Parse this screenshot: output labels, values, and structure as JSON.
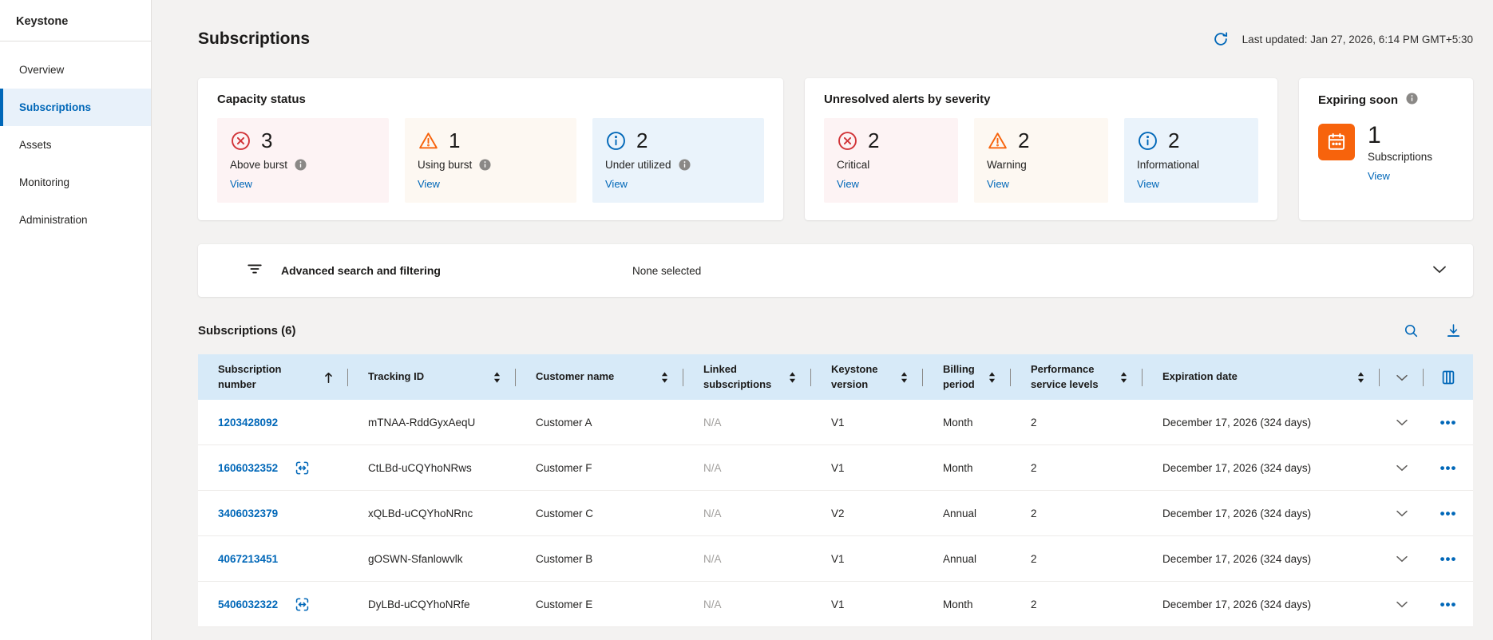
{
  "colors": {
    "accent": "#0067b8",
    "critical": "#d13438",
    "warning": "#f7630c",
    "info": "#0067b8",
    "tile_red_bg": "#fdf3f4",
    "tile_orange_bg": "#fdf8f2",
    "tile_blue_bg": "#eaf3fb",
    "table_header_bg": "#d7eaf8"
  },
  "sidebar": {
    "brand": "Keystone",
    "items": [
      {
        "label": "Overview",
        "active": false
      },
      {
        "label": "Subscriptions",
        "active": true
      },
      {
        "label": "Assets",
        "active": false
      },
      {
        "label": "Monitoring",
        "active": false
      },
      {
        "label": "Administration",
        "active": false
      }
    ]
  },
  "header": {
    "title": "Subscriptions",
    "last_updated": "Last updated: Jan 27, 2026, 6:14 PM GMT+5:30",
    "refresh_icon": "refresh-icon"
  },
  "cards": {
    "capacity": {
      "title": "Capacity status",
      "tiles": [
        {
          "icon": "dismiss-circle",
          "color": "#d13438",
          "bg": "#fdf3f4",
          "count": "3",
          "label": "Above burst",
          "info": true,
          "view": "View"
        },
        {
          "icon": "warning-triangle",
          "color": "#f7630c",
          "bg": "#fdf8f2",
          "count": "1",
          "label": "Using burst",
          "info": true,
          "view": "View"
        },
        {
          "icon": "info-circle",
          "color": "#0067b8",
          "bg": "#eaf3fb",
          "count": "2",
          "label": "Under utilized",
          "info": true,
          "view": "View"
        }
      ]
    },
    "alerts": {
      "title": "Unresolved alerts by severity",
      "tiles": [
        {
          "icon": "dismiss-circle",
          "color": "#d13438",
          "bg": "#fdf3f4",
          "count": "2",
          "label": "Critical",
          "info": false,
          "view": "View"
        },
        {
          "icon": "warning-triangle",
          "color": "#f7630c",
          "bg": "#fdf8f2",
          "count": "2",
          "label": "Warning",
          "info": false,
          "view": "View"
        },
        {
          "icon": "info-circle",
          "color": "#0067b8",
          "bg": "#eaf3fb",
          "count": "2",
          "label": "Informational",
          "info": false,
          "view": "View"
        }
      ]
    },
    "expiring": {
      "title": "Expiring soon",
      "has_info": true,
      "icon": "calendar-icon",
      "accent": "#f7630c",
      "count": "1",
      "label": "Subscriptions",
      "view": "View"
    }
  },
  "filter_bar": {
    "icon": "filter-icon",
    "label": "Advanced search and filtering",
    "selection": "None selected",
    "chevron": "chevron-down-icon"
  },
  "table": {
    "title": "Subscriptions (6)",
    "actions": [
      "search-icon",
      "download-icon"
    ],
    "columns": [
      {
        "label": "Subscription number",
        "sort": "asc"
      },
      {
        "label": "Tracking ID",
        "sort": "none"
      },
      {
        "label": "Customer name",
        "sort": "none"
      },
      {
        "label": "Linked subscriptions",
        "sort": "none"
      },
      {
        "label": "Keystone version",
        "sort": "none"
      },
      {
        "label": "Billing period",
        "sort": "none"
      },
      {
        "label": "Performance service levels",
        "sort": "none"
      },
      {
        "label": "Expiration date",
        "sort": "none"
      }
    ],
    "rows": [
      {
        "subscription_number": "1203428092",
        "linked_icon": false,
        "tracking_id": "mTNAA-RddGyxAeqU",
        "customer_name": "Customer A",
        "linked_subscriptions": "N/A",
        "keystone_version": "V1",
        "billing_period": "Month",
        "performance_service_levels": "2",
        "expiration_date": "December 17, 2026 (324 days)"
      },
      {
        "subscription_number": "1606032352",
        "linked_icon": true,
        "tracking_id": "CtLBd-uCQYhoNRws",
        "customer_name": "Customer F",
        "linked_subscriptions": "N/A",
        "keystone_version": "V1",
        "billing_period": "Month",
        "performance_service_levels": "2",
        "expiration_date": "December 17, 2026 (324 days)"
      },
      {
        "subscription_number": "3406032379",
        "linked_icon": false,
        "tracking_id": "xQLBd-uCQYhoNRnc",
        "customer_name": "Customer C",
        "linked_subscriptions": "N/A",
        "keystone_version": "V2",
        "billing_period": "Annual",
        "performance_service_levels": "2",
        "expiration_date": "December 17, 2026 (324 days)"
      },
      {
        "subscription_number": "4067213451",
        "linked_icon": false,
        "tracking_id": "gOSWN-Sfanlowvlk",
        "customer_name": "Customer B",
        "linked_subscriptions": "N/A",
        "keystone_version": "V1",
        "billing_period": "Annual",
        "performance_service_levels": "2",
        "expiration_date": "December 17, 2026 (324 days)"
      },
      {
        "subscription_number": "5406032322",
        "linked_icon": true,
        "tracking_id": "DyLBd-uCQYhoNRfe",
        "customer_name": "Customer E",
        "linked_subscriptions": "N/A",
        "keystone_version": "V1",
        "billing_period": "Month",
        "performance_service_levels": "2",
        "expiration_date": "December 17, 2026 (324 days)"
      }
    ]
  }
}
